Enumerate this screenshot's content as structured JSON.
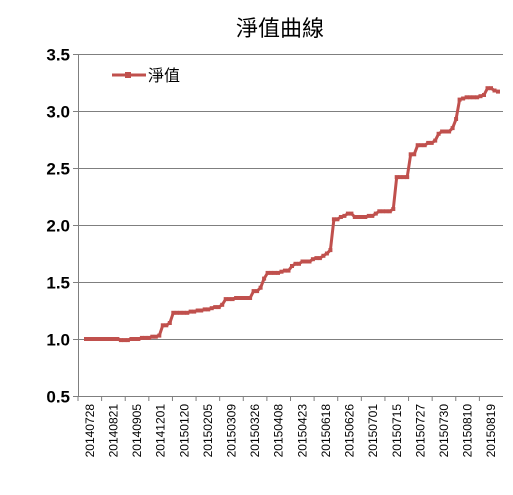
{
  "chart_data": {
    "type": "line",
    "title": "淨值曲線",
    "xlabel": "",
    "ylabel": "",
    "ylim": [
      0.5,
      3.5
    ],
    "y_ticks": [
      "0.5",
      "1.0",
      "1.5",
      "2.0",
      "2.5",
      "3.0",
      "3.5"
    ],
    "grid": "horizontal",
    "legend_position": "top-left",
    "x_tick_labels": [
      "20140728",
      "20140821",
      "20140905",
      "20141201",
      "20150120",
      "20150205",
      "20150309",
      "20150326",
      "20150408",
      "20150423",
      "20150618",
      "20150626",
      "20150701",
      "20150715",
      "20150727",
      "20150730",
      "20150810",
      "20150819"
    ],
    "series": [
      {
        "name": "淨值",
        "color": "#c0504d",
        "values": [
          1.0,
          1.0,
          1.0,
          1.0,
          1.0,
          1.0,
          1.0,
          1.0,
          1.0,
          1.0,
          0.99,
          0.99,
          0.99,
          1.0,
          1.0,
          1.0,
          1.01,
          1.01,
          1.01,
          1.02,
          1.02,
          1.03,
          1.12,
          1.12,
          1.14,
          1.23,
          1.23,
          1.23,
          1.23,
          1.23,
          1.24,
          1.24,
          1.25,
          1.25,
          1.26,
          1.26,
          1.27,
          1.28,
          1.28,
          1.3,
          1.35,
          1.35,
          1.35,
          1.36,
          1.36,
          1.36,
          1.36,
          1.36,
          1.42,
          1.42,
          1.45,
          1.53,
          1.58,
          1.58,
          1.58,
          1.58,
          1.59,
          1.6,
          1.6,
          1.64,
          1.66,
          1.66,
          1.68,
          1.68,
          1.68,
          1.7,
          1.71,
          1.71,
          1.73,
          1.75,
          1.78,
          2.05,
          2.05,
          2.07,
          2.08,
          2.1,
          2.1,
          2.07,
          2.07,
          2.07,
          2.07,
          2.08,
          2.08,
          2.1,
          2.12,
          2.12,
          2.12,
          2.12,
          2.14,
          2.42,
          2.42,
          2.42,
          2.42,
          2.62,
          2.62,
          2.7,
          2.7,
          2.7,
          2.72,
          2.72,
          2.74,
          2.8,
          2.82,
          2.82,
          2.82,
          2.85,
          2.93,
          3.1,
          3.11,
          3.12,
          3.12,
          3.12,
          3.12,
          3.13,
          3.14,
          3.2,
          3.2,
          3.18,
          3.17
        ]
      }
    ]
  }
}
